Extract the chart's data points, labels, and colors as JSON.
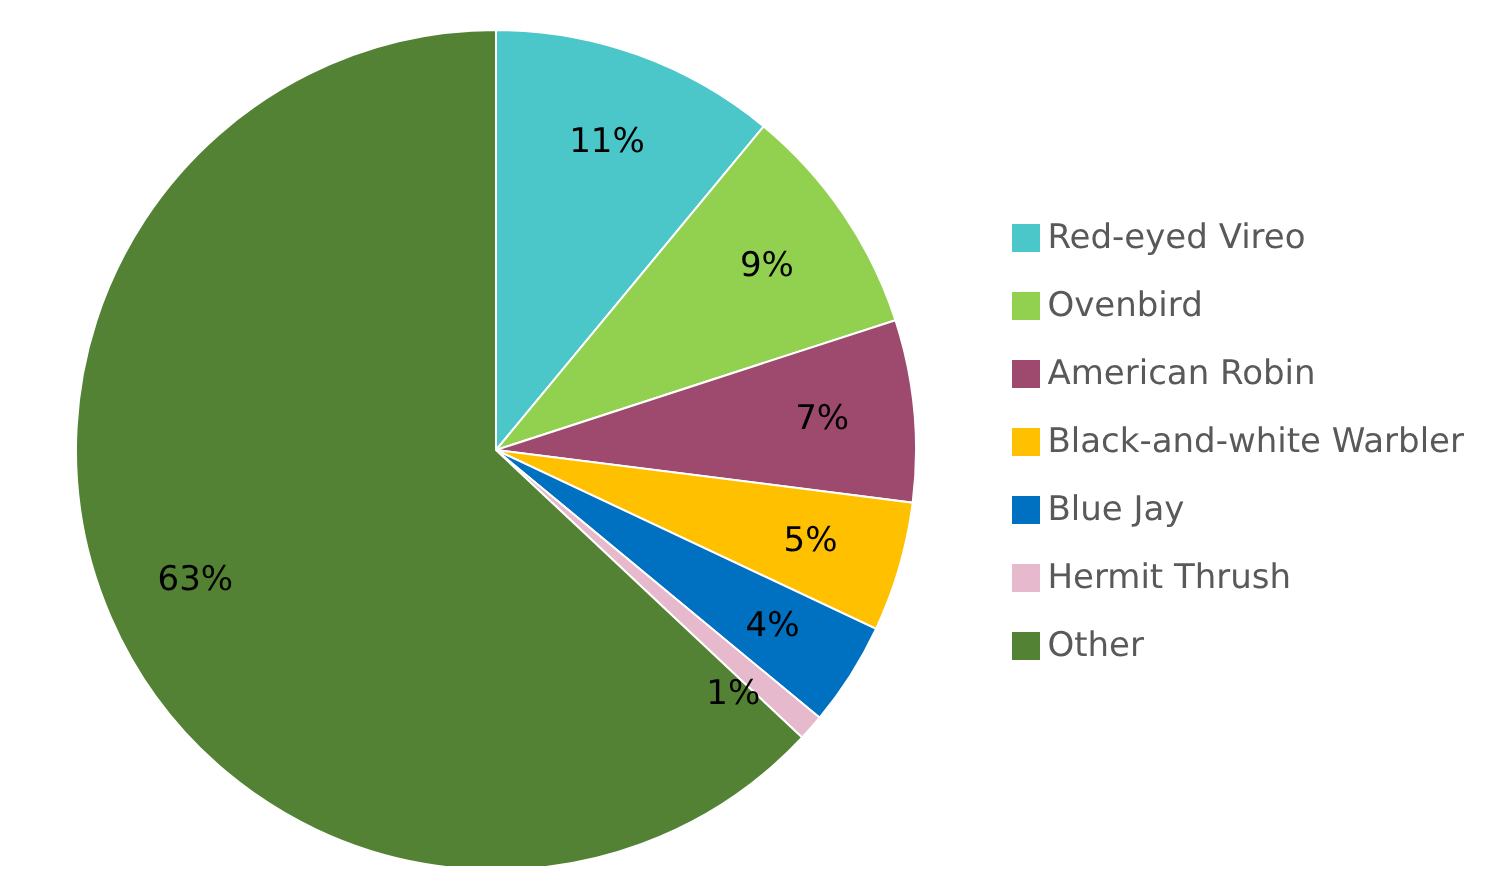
{
  "chart_data": {
    "type": "pie",
    "categories": [
      "Red-eyed Vireo",
      "Ovenbird",
      "American Robin",
      "Black-and-white Warbler",
      "Blue Jay",
      "Hermit Thrush",
      "Other"
    ],
    "values": [
      11,
      9,
      7,
      5,
      4,
      1,
      63
    ],
    "value_labels": [
      "11%",
      "9%",
      "7%",
      "5%",
      "4%",
      "1%",
      "63%"
    ],
    "colors": [
      "#4bc6c9",
      "#92d050",
      "#9e4a6e",
      "#ffc000",
      "#0070c0",
      "#e6b9cd",
      "#548235"
    ],
    "legend": "right"
  }
}
